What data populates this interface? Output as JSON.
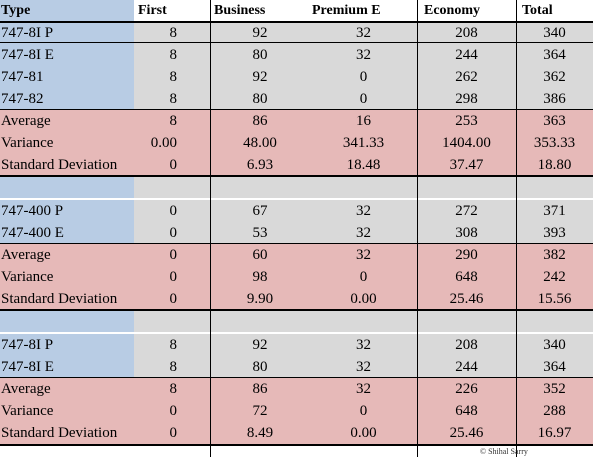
{
  "header": [
    "Type",
    "First",
    "Business",
    "Premium E",
    "Economy",
    "Total"
  ],
  "groups": [
    {
      "aircraft": [
        {
          "type": "747-8I P",
          "values": [
            "8",
            "92",
            "32",
            "208",
            "340"
          ]
        },
        {
          "type": "747-8I E",
          "values": [
            "8",
            "80",
            "32",
            "244",
            "364"
          ]
        },
        {
          "type": "747-81",
          "values": [
            "8",
            "92",
            "0",
            "262",
            "362"
          ]
        },
        {
          "type": "747-82",
          "values": [
            "8",
            "80",
            "0",
            "298",
            "386"
          ]
        }
      ],
      "stats": [
        {
          "label": "Average",
          "values": [
            "8",
            "86",
            "16",
            "253",
            "363"
          ]
        },
        {
          "label": "Variance",
          "values": [
            "0.00",
            "48.00",
            "341.33",
            "1404.00",
            "353.33"
          ]
        },
        {
          "label": "Standard Deviation",
          "values": [
            "0",
            "6.93",
            "18.48",
            "37.47",
            "18.80"
          ]
        }
      ]
    },
    {
      "aircraft": [
        {
          "type": "747-400 P",
          "values": [
            "0",
            "67",
            "32",
            "272",
            "371"
          ]
        },
        {
          "type": "747-400 E",
          "values": [
            "0",
            "53",
            "32",
            "308",
            "393"
          ]
        }
      ],
      "stats": [
        {
          "label": "Average",
          "values": [
            "0",
            "60",
            "32",
            "290",
            "382"
          ]
        },
        {
          "label": "Variance",
          "values": [
            "0",
            "98",
            "0",
            "648",
            "242"
          ]
        },
        {
          "label": "Standard Deviation",
          "values": [
            "0",
            "9.90",
            "0.00",
            "25.46",
            "15.56"
          ]
        }
      ]
    },
    {
      "aircraft": [
        {
          "type": "747-8I P",
          "values": [
            "8",
            "92",
            "32",
            "208",
            "340"
          ]
        },
        {
          "type": "747-8I E",
          "values": [
            "8",
            "80",
            "32",
            "244",
            "364"
          ]
        }
      ],
      "stats": [
        {
          "label": "Average",
          "values": [
            "8",
            "86",
            "32",
            "226",
            "352"
          ]
        },
        {
          "label": "Variance",
          "values": [
            "0",
            "72",
            "0",
            "648",
            "288"
          ]
        },
        {
          "label": "Standard Deviation",
          "values": [
            "0",
            "8.49",
            "0.00",
            "25.46",
            "16.97"
          ]
        }
      ]
    }
  ],
  "copyright": "© Shihal Sarry",
  "colors": {
    "type_column": "#b8cce4",
    "data_cells": "#d9d9d9",
    "stats_rows": "#e6b9b8"
  }
}
